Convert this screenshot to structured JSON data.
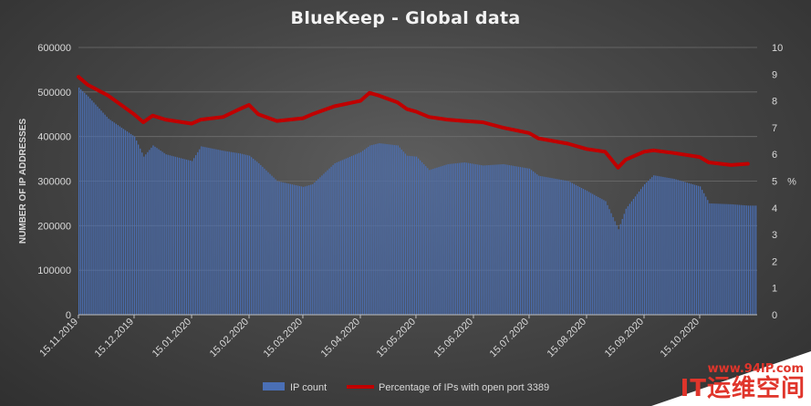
{
  "chart_data": {
    "type": "bar",
    "title": "BlueKeep - Global data",
    "ylabel": "NUMBER OF IP ADDRESSES",
    "y2label": "%",
    "ylim": [
      0,
      600000
    ],
    "y2lim": [
      0,
      10
    ],
    "y_ticks": [
      "0",
      "100000",
      "200000",
      "300000",
      "400000",
      "500000",
      "600000"
    ],
    "y2_ticks": [
      "0",
      "1",
      "2",
      "3",
      "4",
      "5",
      "6",
      "7",
      "8",
      "9",
      "10"
    ],
    "x_ticks": [
      "15.11.2019",
      "15.12.2019",
      "15.01.2020",
      "15.02.2020",
      "15.03.2020",
      "15.04.2020",
      "15.05.2020",
      "15.06.2020",
      "15.07.2020",
      "15.08.2020",
      "15.09.2020",
      "15.10.2020"
    ],
    "grid": true,
    "legend_position": "bottom",
    "colors": {
      "bars": "#4a6fb5",
      "line": "#c00000"
    },
    "series": [
      {
        "name": "IP count",
        "kind": "bar",
        "x": [
          "15.11.2019",
          "20.11.2019",
          "01.12.2019",
          "15.12.2019",
          "20.12.2019",
          "25.12.2019",
          "01.01.2020",
          "15.01.2020",
          "20.01.2020",
          "01.02.2020",
          "10.02.2020",
          "15.02.2020",
          "20.02.2020",
          "01.03.2020",
          "15.03.2020",
          "20.03.2020",
          "01.04.2020",
          "15.04.2020",
          "20.04.2020",
          "25.04.2020",
          "05.05.2020",
          "10.05.2020",
          "15.05.2020",
          "22.05.2020",
          "01.06.2020",
          "10.06.2020",
          "20.06.2020",
          "01.07.2020",
          "15.07.2020",
          "20.07.2020",
          "05.08.2020",
          "15.08.2020",
          "25.08.2020",
          "01.09.2020",
          "05.09.2020",
          "15.09.2020",
          "20.09.2020",
          "01.10.2020",
          "15.10.2020",
          "20.10.2020",
          "01.11.2020",
          "10.11.2020"
        ],
        "values": [
          510000,
          490000,
          440000,
          400000,
          355000,
          380000,
          360000,
          345000,
          378000,
          368000,
          362000,
          357000,
          340000,
          300000,
          287000,
          293000,
          340000,
          365000,
          380000,
          385000,
          380000,
          357000,
          355000,
          325000,
          338000,
          342000,
          335000,
          338000,
          328000,
          312000,
          300000,
          278000,
          255000,
          192000,
          238000,
          293000,
          313000,
          305000,
          288000,
          250000,
          248000,
          245000
        ]
      },
      {
        "name": "Percentage of IPs with open port 3389",
        "kind": "line",
        "axis": "right",
        "x": [
          "15.11.2019",
          "20.11.2019",
          "01.12.2019",
          "15.12.2019",
          "20.12.2019",
          "25.12.2019",
          "01.01.2020",
          "15.01.2020",
          "20.01.2020",
          "01.02.2020",
          "10.02.2020",
          "15.02.2020",
          "20.02.2020",
          "01.03.2020",
          "15.03.2020",
          "20.03.2020",
          "01.04.2020",
          "15.04.2020",
          "20.04.2020",
          "25.04.2020",
          "05.05.2020",
          "10.05.2020",
          "15.05.2020",
          "22.05.2020",
          "01.06.2020",
          "10.06.2020",
          "20.06.2020",
          "01.07.2020",
          "15.07.2020",
          "20.07.2020",
          "05.08.2020",
          "15.08.2020",
          "25.08.2020",
          "01.09.2020",
          "05.09.2020",
          "15.09.2020",
          "20.09.2020",
          "01.10.2020",
          "15.10.2020",
          "20.10.2020",
          "01.11.2020",
          "10.11.2020"
        ],
        "values": [
          8.9,
          8.6,
          8.2,
          7.5,
          7.2,
          7.45,
          7.3,
          7.15,
          7.3,
          7.4,
          7.7,
          7.85,
          7.5,
          7.25,
          7.35,
          7.5,
          7.8,
          8.0,
          8.3,
          8.2,
          7.95,
          7.7,
          7.6,
          7.4,
          7.3,
          7.25,
          7.2,
          7.0,
          6.8,
          6.6,
          6.4,
          6.2,
          6.1,
          5.5,
          5.8,
          6.1,
          6.15,
          6.05,
          5.9,
          5.7,
          5.6,
          5.65
        ]
      }
    ]
  },
  "watermark": {
    "url": "www.94IP.com",
    "brand": "IT运维空间"
  }
}
